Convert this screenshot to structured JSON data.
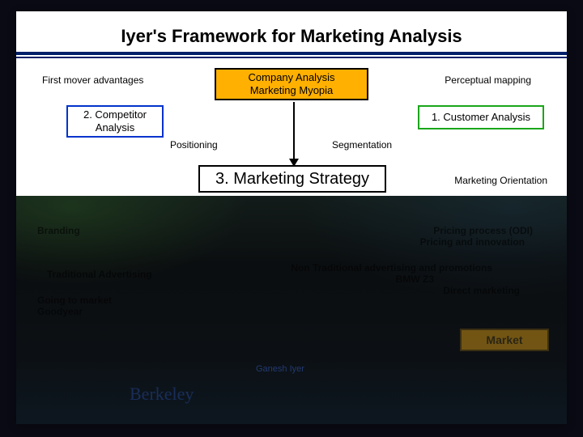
{
  "slide": {
    "title": "Iyer's Framework for Marketing Analysis",
    "title_rule_color": "#001f6a",
    "background": "#ffffff",
    "outer_background": "#0a0a14"
  },
  "boxes": {
    "company_analysis": {
      "line1": "Company Analysis",
      "line2": "Marketing Myopia",
      "bg": "#ffb000",
      "border": "#000000"
    },
    "competitor_analysis": {
      "line1": "2. Competitor",
      "line2": "Analysis",
      "bg": "#ffffff",
      "border": "#0033cc"
    },
    "customer_analysis": {
      "text": "1. Customer Analysis",
      "bg": "#ffffff",
      "border": "#1aa61a"
    },
    "marketing_strategy": {
      "text": "3. Marketing Strategy",
      "bg": "#ffffff",
      "border": "#000000"
    },
    "market": {
      "text": "Market",
      "bg": "#ffb000",
      "border": "#000000"
    }
  },
  "labels": {
    "first_mover": "First mover advantages",
    "perceptual_mapping": "Perceptual mapping",
    "positioning": "Positioning",
    "segmentation": "Segmentation",
    "marketing_orientation": "Marketing Orientation",
    "branding": "Branding",
    "pricing1": "Pricing process (ODI)",
    "pricing2": "Pricing and innovation",
    "trad_adv": "Traditional Advertising",
    "non_trad": "Non Traditional advertising and promotions",
    "bmw": "BMW Z3",
    "direct_mkt": "Direct marketing",
    "going_market": "Going to market",
    "goodyear": "Goodyear",
    "berkeley": "Berkeley",
    "haas": "Ganesh Iyer"
  },
  "style": {
    "title_fontsize": 22,
    "label_fontsize": 12,
    "box_fontsize": 13,
    "strategy_fontsize": 20,
    "arrow_color": "#000000"
  }
}
